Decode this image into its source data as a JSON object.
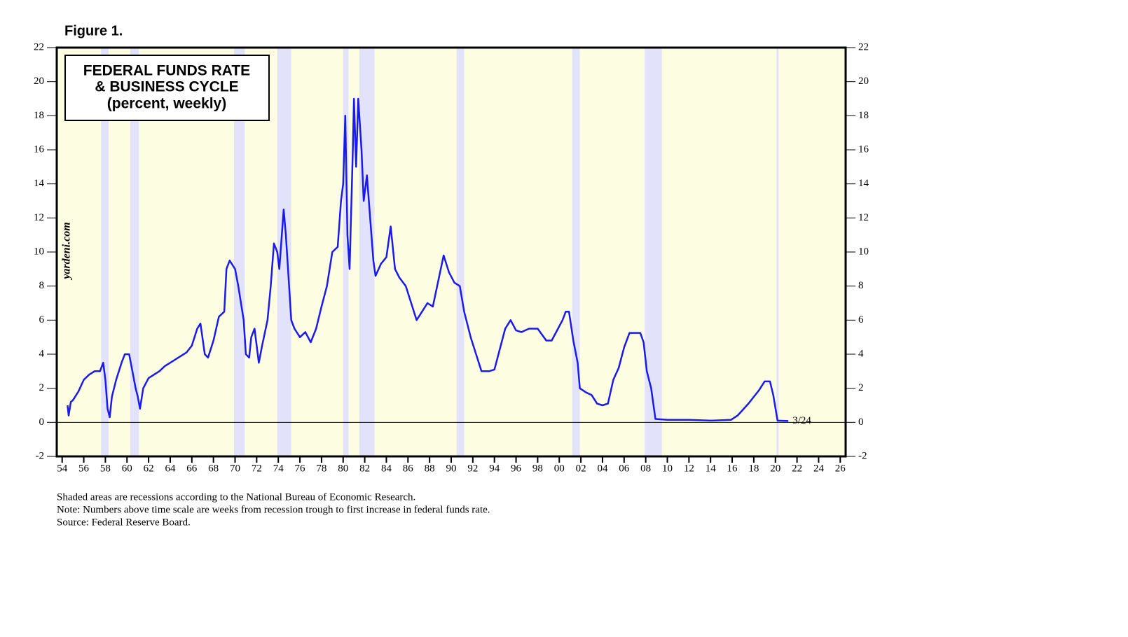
{
  "chart_data": {
    "type": "line",
    "figure_label": "Figure 1.",
    "title": [
      "FEDERAL FUNDS RATE",
      "& BUSINESS CYCLE",
      "(percent, weekly)"
    ],
    "watermark": "yardeni.com",
    "annotation": "3/24",
    "notes": [
      "Shaded areas are recessions according to the National Bureau of Economic Research.",
      "Note: Numbers above time scale are weeks from recession trough to first increase in federal funds rate.",
      "Source: Federal Reserve Board."
    ],
    "color": "#1a1aee",
    "x": [
      1954.5,
      1954.6,
      1954.8,
      1955,
      1955.5,
      1956,
      1956.5,
      1957,
      1957.5,
      1957.8,
      1958.0,
      1958.2,
      1958.4,
      1958.6,
      1959,
      1959.5,
      1959.8,
      1960.2,
      1960.5,
      1960.8,
      1961.0,
      1961.2,
      1961.5,
      1962,
      1962.5,
      1963,
      1963.5,
      1964,
      1965,
      1965.5,
      1966,
      1966.5,
      1966.8,
      1967.2,
      1967.5,
      1968,
      1968.5,
      1969,
      1969.2,
      1969.5,
      1970,
      1970.3,
      1970.8,
      1971.0,
      1971.3,
      1971.5,
      1971.8,
      1972.2,
      1972.5,
      1973.0,
      1973.3,
      1973.6,
      1973.9,
      1974.1,
      1974.5,
      1974.7,
      1974.9,
      1975.2,
      1975.5,
      1976,
      1976.5,
      1977,
      1977.5,
      1978,
      1978.5,
      1979,
      1979.5,
      1979.8,
      1980.0,
      1980.2,
      1980.4,
      1980.6,
      1980.9,
      1981.0,
      1981.2,
      1981.4,
      1981.7,
      1981.9,
      1982.2,
      1982.5,
      1982.8,
      1983.0,
      1983.5,
      1984.0,
      1984.4,
      1984.8,
      1985.2,
      1985.8,
      1986.3,
      1986.8,
      1987.3,
      1987.8,
      1988.3,
      1988.8,
      1989.3,
      1989.8,
      1990.3,
      1990.8,
      1991.2,
      1991.8,
      1992.3,
      1992.8,
      1993.5,
      1994.0,
      1994.5,
      1995.0,
      1995.5,
      1996,
      1996.5,
      1997.2,
      1998,
      1998.8,
      1999.3,
      1999.8,
      2000.3,
      2000.6,
      2000.9,
      2001.3,
      2001.7,
      2001.9,
      2002.5,
      2003.0,
      2003.5,
      2004.0,
      2004.5,
      2005,
      2005.5,
      2006,
      2006.5,
      2007.5,
      2007.8,
      2008.1,
      2008.5,
      2008.9,
      2010,
      2012,
      2014,
      2015.9,
      2016.5,
      2017.5,
      2018.5,
      2019.0,
      2019.5,
      2019.8,
      2020.2,
      2021.2
    ],
    "values": [
      1.0,
      0.4,
      1.2,
      1.3,
      1.8,
      2.5,
      2.8,
      3.0,
      3.0,
      3.5,
      2.5,
      0.8,
      0.3,
      1.5,
      2.5,
      3.5,
      4.0,
      4.0,
      3.0,
      2.0,
      1.5,
      0.8,
      2.0,
      2.6,
      2.8,
      3.0,
      3.3,
      3.5,
      3.9,
      4.1,
      4.5,
      5.5,
      5.8,
      4.0,
      3.8,
      4.8,
      6.2,
      6.5,
      9.0,
      9.5,
      9.0,
      8.0,
      6.0,
      4.0,
      3.8,
      5.0,
      5.5,
      3.5,
      4.5,
      6.0,
      8.0,
      10.5,
      10.0,
      9.0,
      12.5,
      11.0,
      9.0,
      6.0,
      5.5,
      5.0,
      5.3,
      4.7,
      5.5,
      6.8,
      8.0,
      10.0,
      10.3,
      13.0,
      14.0,
      18.0,
      11.0,
      9.0,
      16.0,
      19.0,
      15.0,
      19.0,
      16.0,
      13.0,
      14.5,
      12.0,
      9.5,
      8.6,
      9.3,
      9.7,
      11.5,
      9.0,
      8.5,
      8.0,
      7.0,
      6.0,
      6.5,
      7.0,
      6.8,
      8.3,
      9.8,
      8.8,
      8.2,
      8.0,
      6.5,
      5.0,
      4.0,
      3.0,
      3.0,
      3.1,
      4.3,
      5.5,
      6.0,
      5.4,
      5.3,
      5.5,
      5.5,
      4.8,
      4.8,
      5.4,
      6.0,
      6.5,
      6.5,
      4.8,
      3.5,
      2.0,
      1.75,
      1.6,
      1.1,
      1.0,
      1.1,
      2.5,
      3.2,
      4.4,
      5.25,
      5.25,
      4.7,
      3.0,
      2.0,
      0.2,
      0.15,
      0.15,
      0.1,
      0.15,
      0.4,
      1.1,
      1.9,
      2.4,
      2.4,
      1.6,
      0.1,
      0.08
    ],
    "recessions": [
      [
        1957.6,
        1958.3
      ],
      [
        1960.3,
        1961.1
      ],
      [
        1969.9,
        1970.9
      ],
      [
        1973.9,
        1975.2
      ],
      [
        1980.0,
        1980.5
      ],
      [
        1981.5,
        1982.9
      ],
      [
        1990.5,
        1991.2
      ],
      [
        2001.2,
        2001.9
      ],
      [
        2007.9,
        2009.5
      ],
      [
        2020.1,
        2020.3
      ]
    ],
    "recession_color": "#e2e3fa",
    "background": "#fdfde2",
    "hline": 0,
    "xlim": [
      1953.5,
      2026.5
    ],
    "ylim": [
      -2,
      22
    ],
    "xticks": [
      {
        "value": 1954,
        "label": "54"
      },
      {
        "value": 1956,
        "label": "56"
      },
      {
        "value": 1958,
        "label": "58"
      },
      {
        "value": 1960,
        "label": "60"
      },
      {
        "value": 1962,
        "label": "62"
      },
      {
        "value": 1964,
        "label": "64"
      },
      {
        "value": 1966,
        "label": "66"
      },
      {
        "value": 1968,
        "label": "68"
      },
      {
        "value": 1970,
        "label": "70"
      },
      {
        "value": 1972,
        "label": "72"
      },
      {
        "value": 1974,
        "label": "74"
      },
      {
        "value": 1976,
        "label": "76"
      },
      {
        "value": 1978,
        "label": "78"
      },
      {
        "value": 1980,
        "label": "80"
      },
      {
        "value": 1982,
        "label": "82"
      },
      {
        "value": 1984,
        "label": "84"
      },
      {
        "value": 1986,
        "label": "86"
      },
      {
        "value": 1988,
        "label": "88"
      },
      {
        "value": 1990,
        "label": "90"
      },
      {
        "value": 1992,
        "label": "92"
      },
      {
        "value": 1994,
        "label": "94"
      },
      {
        "value": 1996,
        "label": "96"
      },
      {
        "value": 1998,
        "label": "98"
      },
      {
        "value": 2000,
        "label": "00"
      },
      {
        "value": 2002,
        "label": "02"
      },
      {
        "value": 2004,
        "label": "04"
      },
      {
        "value": 2006,
        "label": "06"
      },
      {
        "value": 2008,
        "label": "08"
      },
      {
        "value": 2010,
        "label": "10"
      },
      {
        "value": 2012,
        "label": "12"
      },
      {
        "value": 2014,
        "label": "14"
      },
      {
        "value": 2016,
        "label": "16"
      },
      {
        "value": 2018,
        "label": "18"
      },
      {
        "value": 2020,
        "label": "20"
      },
      {
        "value": 2022,
        "label": "22"
      },
      {
        "value": 2024,
        "label": "24"
      },
      {
        "value": 2026,
        "label": "26"
      }
    ],
    "yticks": [
      -2,
      0,
      2,
      4,
      6,
      8,
      10,
      12,
      14,
      16,
      18,
      20,
      22
    ]
  }
}
